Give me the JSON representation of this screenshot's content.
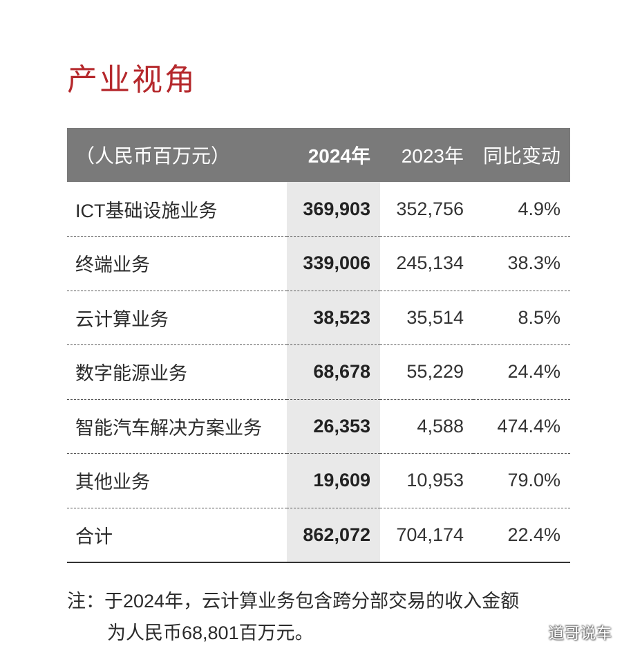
{
  "section_title": "产业视角",
  "table": {
    "headers": {
      "label": "（人民币百万元）",
      "y2024": "2024年",
      "y2023": "2023年",
      "change": "同比变动"
    },
    "rows": [
      {
        "segment": "ICT基础设施业务",
        "y2024": "369,903",
        "y2023": "352,756",
        "change": "4.9%"
      },
      {
        "segment": "终端业务",
        "y2024": "339,006",
        "y2023": "245,134",
        "change": "38.3%"
      },
      {
        "segment": "云计算业务",
        "y2024": "38,523",
        "y2023": "35,514",
        "change": "8.5%"
      },
      {
        "segment": "数字能源业务",
        "y2024": "68,678",
        "y2023": "55,229",
        "change": "24.4%"
      },
      {
        "segment": "智能汽车解决方案业务",
        "y2024": "26,353",
        "y2023": "4,588",
        "change": "474.4%"
      },
      {
        "segment": "其他业务",
        "y2024": "19,609",
        "y2023": "10,953",
        "change": "79.0%"
      },
      {
        "segment": "合计",
        "y2024": "862,072",
        "y2023": "704,174",
        "change": "22.4%"
      }
    ]
  },
  "note": {
    "line1": "注：于2024年，云计算业务包含跨分部交易的收入金额",
    "line2": "为人民币68,801百万元。"
  },
  "watermark": "道哥说车"
}
